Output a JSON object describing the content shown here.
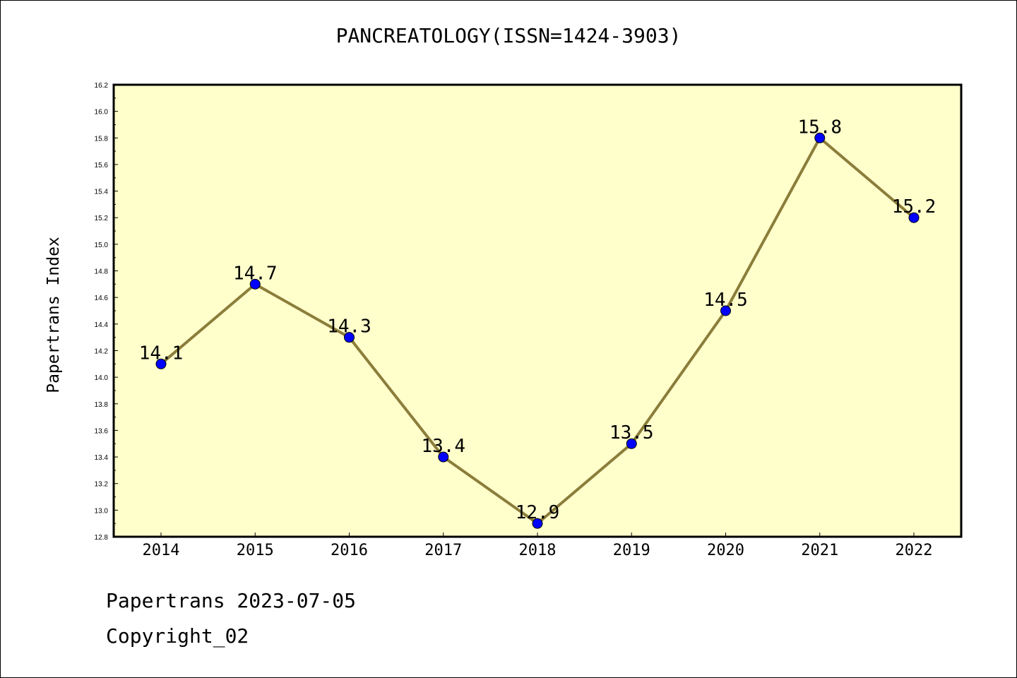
{
  "chart_data": {
    "type": "line",
    "title": "PANCREATOLOGY(ISSN=1424-3903)",
    "xlabel": "",
    "ylabel": "Papertrans Index",
    "categories": [
      "2014",
      "2015",
      "2016",
      "2017",
      "2018",
      "2019",
      "2020",
      "2021",
      "2022"
    ],
    "series": [
      {
        "values": [
          14.1,
          14.7,
          14.3,
          13.4,
          12.9,
          13.5,
          14.5,
          15.8,
          15.2
        ],
        "labels": [
          "14.1",
          "14.7",
          "14.3",
          "13.4",
          "12.9",
          "13.5",
          "14.5",
          "15.8",
          "15.2"
        ]
      }
    ],
    "ylim": [
      12.8,
      16.2
    ],
    "yticks": [
      "12.8",
      "13.0",
      "13.2",
      "13.4",
      "13.6",
      "13.8",
      "14.0",
      "14.2",
      "14.4",
      "14.6",
      "14.8",
      "15.0",
      "15.2",
      "15.4",
      "15.6",
      "15.8",
      "16.0",
      "16.2"
    ],
    "grid": false,
    "colors": {
      "plot_background": "#FFFFCC",
      "line": "#8B7D3A",
      "marker": "#0000FF"
    }
  },
  "footer": {
    "line1": "Papertrans 2023-07-05",
    "line2": "Copyright_02"
  }
}
